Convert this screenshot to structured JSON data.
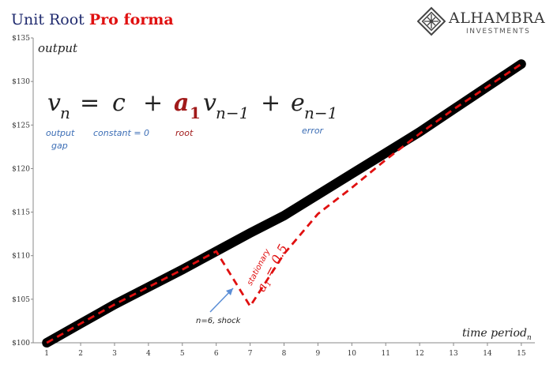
{
  "title": {
    "part1": "Unit Root ",
    "part2": "Pro forma"
  },
  "logo": {
    "name": "ALHAMBRA",
    "sub": "INVESTMENTS",
    "icon": "alhambra-diamond-icon"
  },
  "colors": {
    "title_blue": "#1f2a6e",
    "title_red": "#e01010",
    "trend": "#000000",
    "shock": "#e01010",
    "label_blue": "#3b6db5",
    "label_red": "#a11a1a",
    "arrow": "#5b8ed6"
  },
  "equation": {
    "v": "v",
    "n": "n",
    "eq": "=",
    "c": "c",
    "plus1": "+",
    "a": "a",
    "one": "1",
    "v2": "v",
    "nm1": "n−1",
    "plus2": "+",
    "e": "e",
    "nm1b": "n−1"
  },
  "equation_labels": {
    "output_line1": "output",
    "output_line2": "gap",
    "constant": "constant = 0",
    "root": "root",
    "error": "error"
  },
  "annotations": {
    "shock": "n=6, shock",
    "stationary": "stationary",
    "a1": "a",
    "a1_sub": "1",
    "a1_value": " = 0.5"
  },
  "chart_data": {
    "type": "line",
    "ylabel": "output",
    "xlabel": "time period",
    "xlabel_sub": "n",
    "y_tick_labels": [
      "$100",
      "$105",
      "$110",
      "$115",
      "$120",
      "$125",
      "$130",
      "$135"
    ],
    "y_ticks": [
      100,
      105,
      110,
      115,
      120,
      125,
      130,
      135
    ],
    "ylim": [
      100,
      135
    ],
    "x_ticks": [
      1,
      2,
      3,
      4,
      5,
      6,
      7,
      8,
      9,
      10,
      11,
      12,
      13,
      14,
      15
    ],
    "xlim": [
      0.6,
      15.4
    ],
    "series": [
      {
        "style": "solid-thick",
        "x": [
          1,
          2,
          3,
          4,
          5,
          6,
          7,
          8,
          9,
          10,
          11,
          12,
          13,
          14,
          15
        ],
        "y": [
          100,
          102.2,
          104.4,
          106.4,
          108.4,
          110.5,
          112.6,
          114.6,
          117,
          119.4,
          121.8,
          124.2,
          126.8,
          129.4,
          132
        ]
      },
      {
        "style": "dashed",
        "x": [
          1,
          2,
          3,
          4,
          5,
          6,
          7,
          8,
          9,
          10,
          11,
          12,
          13,
          14,
          15
        ],
        "y": [
          100,
          102.2,
          104.4,
          106.4,
          108.4,
          110.5,
          104.2,
          110.2,
          114.8,
          117.8,
          121,
          124,
          126.8,
          129.4,
          132
        ]
      }
    ],
    "grid": false
  }
}
